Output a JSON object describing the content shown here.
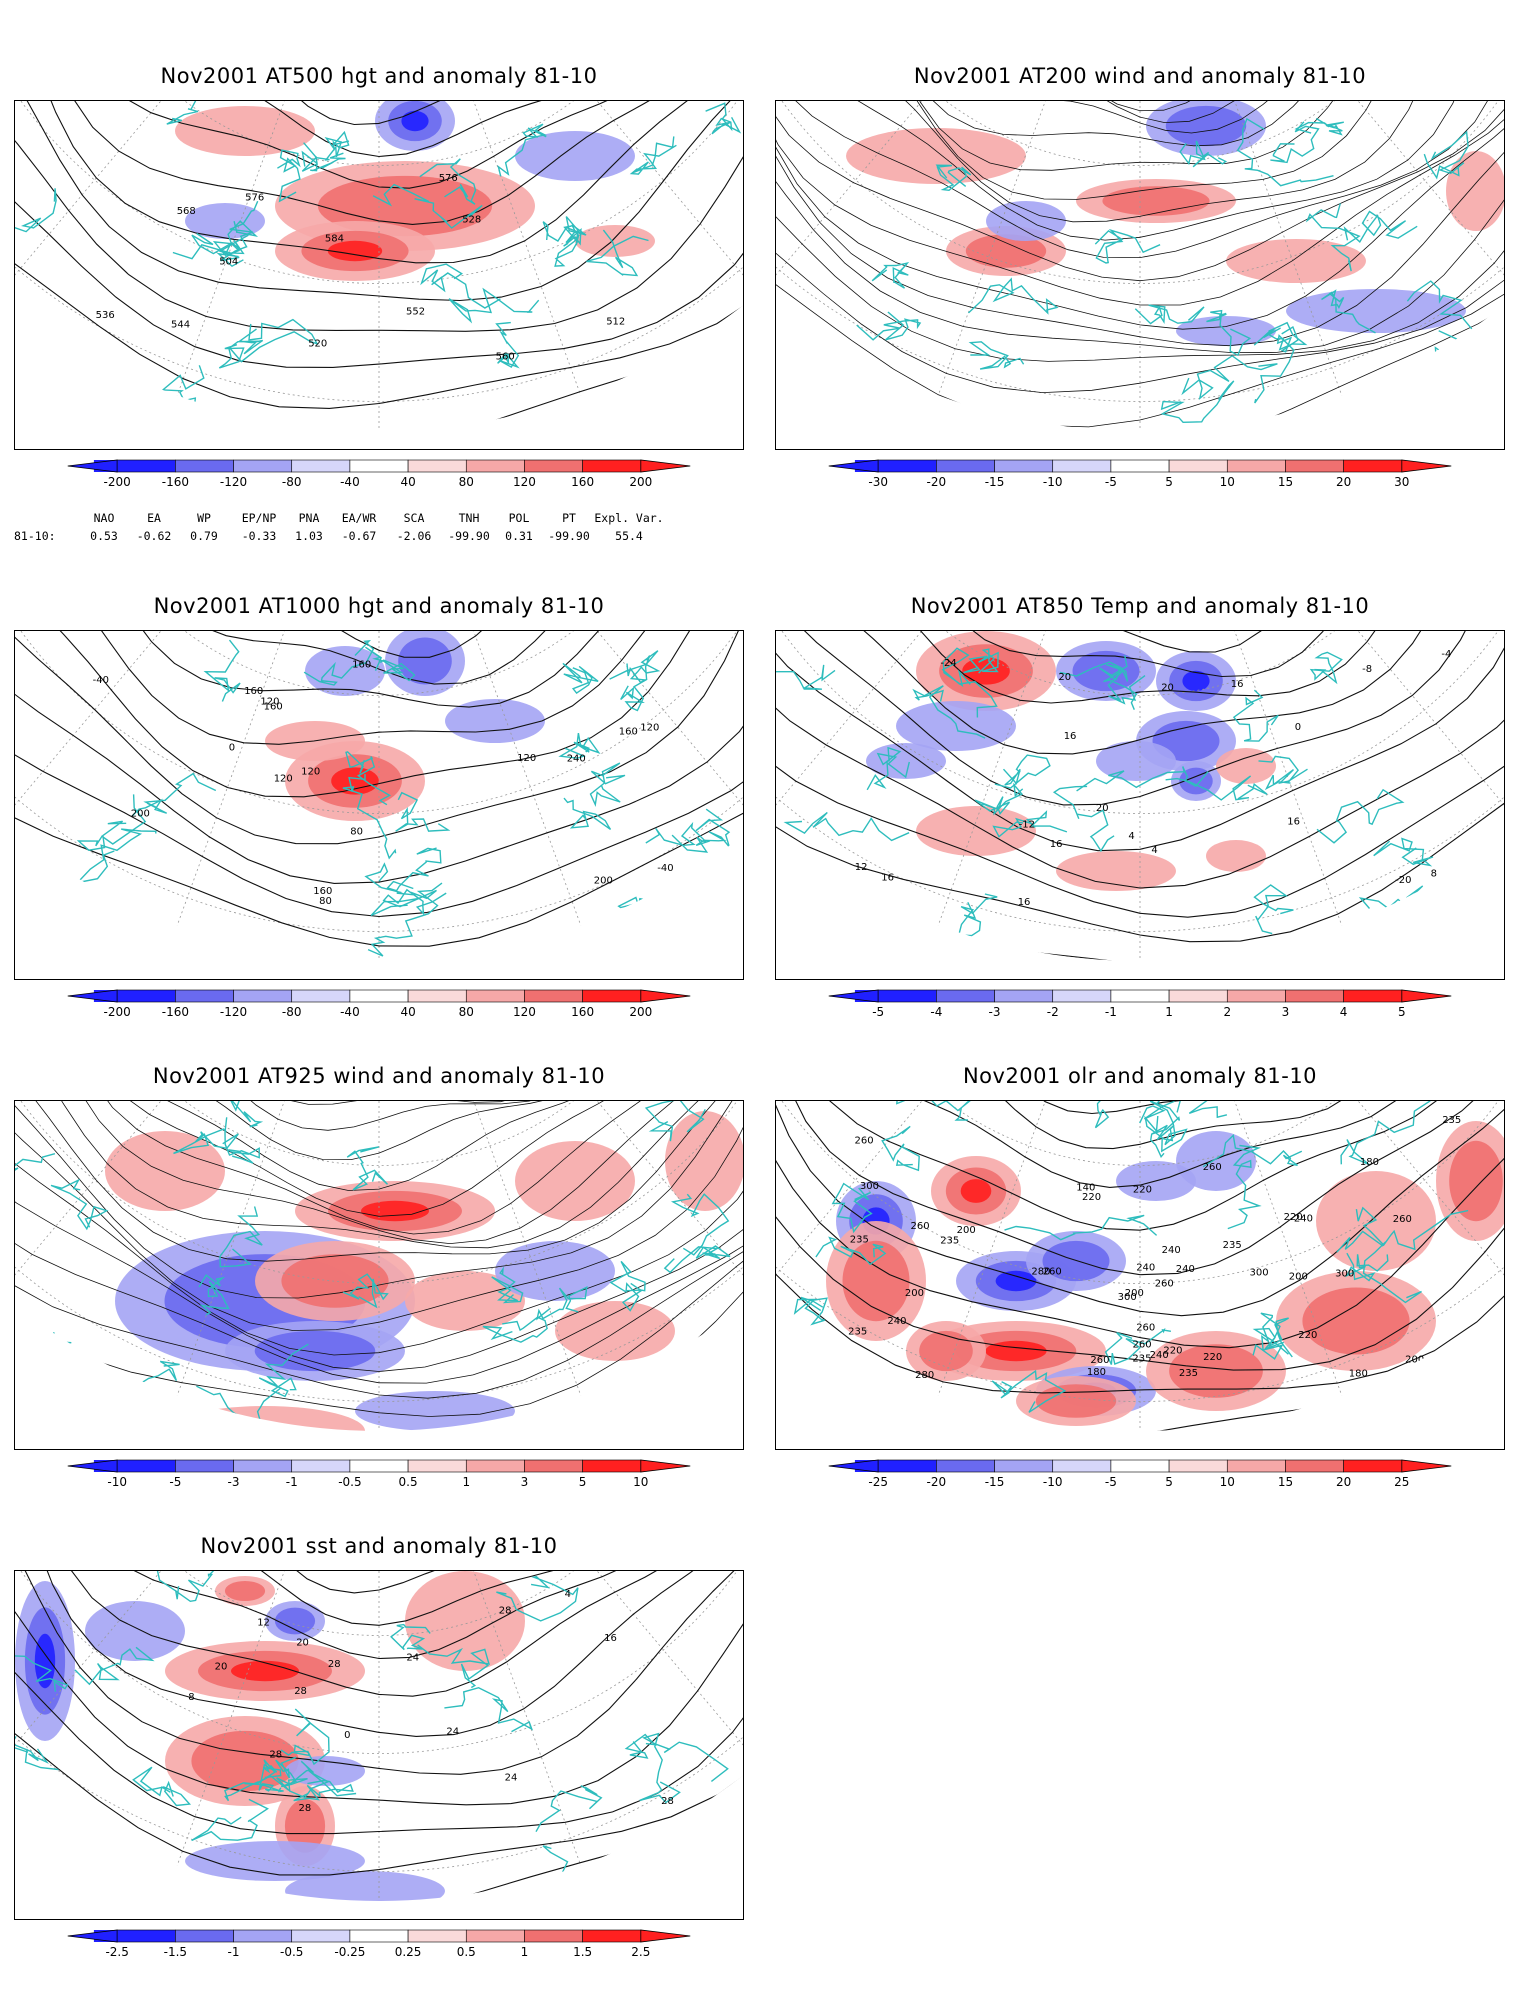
{
  "panels": [
    {
      "id": "at500",
      "title": "Nov2001 AT500 hgt and anomaly 81-10",
      "colorbar": [
        "-200",
        "-160",
        "-120",
        "-80",
        "-40",
        "40",
        "80",
        "120",
        "160",
        "200"
      ],
      "contour_labels": [
        "504",
        "512",
        "520",
        "528",
        "536",
        "544",
        "552",
        "560",
        "568",
        "576",
        "576",
        "584"
      ]
    },
    {
      "id": "at200",
      "title": "Nov2001 AT200 wind and anomaly 81-10",
      "colorbar": [
        "-30",
        "-20",
        "-15",
        "-10",
        "-5",
        "5",
        "10",
        "15",
        "20",
        "30"
      ],
      "contour_labels": []
    },
    {
      "id": "at1000",
      "title": "Nov2001 AT1000 hgt and anomaly 81-10",
      "colorbar": [
        "-200",
        "-160",
        "-120",
        "-80",
        "-40",
        "40",
        "80",
        "120",
        "160",
        "200"
      ],
      "contour_labels": [
        "160",
        "80",
        "-40",
        "120",
        "-40",
        "0",
        "200",
        "160",
        "80",
        "120",
        "200",
        "160",
        "240",
        "160",
        "120",
        "160",
        "120",
        "120"
      ]
    },
    {
      "id": "at850",
      "title": "Nov2001 AT850 Temp and anomaly 81-10",
      "colorbar": [
        "-5",
        "-4",
        "-3",
        "-2",
        "-1",
        "1",
        "2",
        "3",
        "4",
        "5"
      ],
      "contour_labels": [
        "16",
        "16",
        "16",
        "-24",
        "-20",
        "-12",
        "-8",
        "-4",
        "4",
        "0",
        "4",
        "8",
        "12",
        "16",
        "16",
        "20",
        "20",
        "20",
        "16"
      ]
    },
    {
      "id": "at925",
      "title": "Nov2001 AT925 wind and anomaly 81-10",
      "colorbar": [
        "-10",
        "-5",
        "-3",
        "-1",
        "-0.5",
        "0.5",
        "1",
        "3",
        "5",
        "10"
      ],
      "contour_labels": []
    },
    {
      "id": "olr",
      "title": "Nov2001 olr and anomaly 81-10",
      "colorbar": [
        "-25",
        "-20",
        "-15",
        "-10",
        "-5",
        "5",
        "10",
        "15",
        "20",
        "25"
      ],
      "contour_labels": [
        "260",
        "280",
        "235",
        "180",
        "180",
        "140",
        "180",
        "200",
        "240",
        "220",
        "220",
        "235",
        "200",
        "260",
        "240",
        "300",
        "220",
        "235",
        "235",
        "220",
        "240",
        "235",
        "200",
        "220",
        "260",
        "300",
        "260",
        "260",
        "240",
        "260",
        "240",
        "260",
        "300",
        "300",
        "240",
        "220",
        "200",
        "260",
        "235",
        "235",
        "200",
        "280",
        "260"
      ]
    },
    {
      "id": "sst",
      "title": "Nov2001 sst and anomaly 81-10",
      "colorbar": [
        "-2.5",
        "-1.5",
        "-1",
        "-0.5",
        "-0.25",
        "0.25",
        "0.5",
        "1",
        "1.5",
        "2.5"
      ],
      "contour_labels": [
        "28",
        "24",
        "28",
        "24",
        "4",
        "0",
        "8",
        "12",
        "16",
        "20",
        "20",
        "24",
        "28",
        "28",
        "28",
        "28"
      ]
    }
  ],
  "teleconnections": {
    "row_label": "81-10:",
    "headers": [
      "NAO",
      "EA",
      "WP",
      "EP/NP",
      "PNA",
      "EA/WR",
      "SCA",
      "TNH",
      "POL",
      "PT",
      "Expl. Var."
    ],
    "values": [
      "0.53",
      "-0.62",
      "0.79",
      "-0.33",
      "1.03",
      "-0.67",
      "-2.06",
      "-99.90",
      "0.31",
      "-99.90",
      "55.4"
    ]
  },
  "colors": {
    "land_outline": "#2ebdbd",
    "neg3": "#2020ff",
    "neg2": "#6a6af0",
    "neg1": "#a4a4f4",
    "neg0": "#d6d6fa",
    "pos0": "#fadada",
    "pos1": "#f6a8a8",
    "pos2": "#f07070",
    "pos3": "#ff2020"
  }
}
